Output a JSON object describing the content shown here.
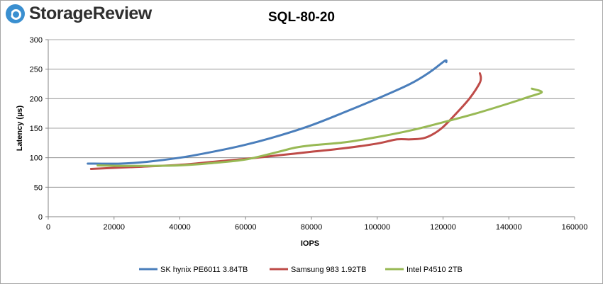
{
  "branding": {
    "logo_text": "StorageReview"
  },
  "chart_data": {
    "type": "line",
    "title": "SQL-80-20",
    "xlabel": "IOPS",
    "ylabel": "Latency (µs)",
    "xlim": [
      0,
      160000
    ],
    "ylim": [
      0,
      300
    ],
    "xticks": [
      0,
      20000,
      40000,
      60000,
      80000,
      100000,
      120000,
      140000,
      160000
    ],
    "yticks": [
      0,
      50,
      100,
      150,
      200,
      250,
      300
    ],
    "grid": "horizontal",
    "legend_position": "bottom",
    "series": [
      {
        "name": "SK hynix PE6011 3.84TB",
        "color": "#4a7ebb",
        "points": [
          [
            12000,
            90
          ],
          [
            22000,
            90
          ],
          [
            30000,
            93
          ],
          [
            40000,
            100
          ],
          [
            50000,
            110
          ],
          [
            60000,
            122
          ],
          [
            70000,
            137
          ],
          [
            80000,
            155
          ],
          [
            90000,
            177
          ],
          [
            100000,
            200
          ],
          [
            110000,
            225
          ],
          [
            116000,
            245
          ],
          [
            120500,
            264
          ],
          [
            121000,
            262
          ]
        ]
      },
      {
        "name": "Samsung 983 1.92TB",
        "color": "#be4b48",
        "points": [
          [
            13000,
            81
          ],
          [
            25000,
            84
          ],
          [
            40000,
            88
          ],
          [
            50000,
            93
          ],
          [
            60000,
            98
          ],
          [
            70000,
            104
          ],
          [
            80000,
            110
          ],
          [
            90000,
            116
          ],
          [
            100000,
            124
          ],
          [
            106000,
            131
          ],
          [
            110000,
            131
          ],
          [
            114000,
            133
          ],
          [
            117000,
            140
          ],
          [
            120000,
            152
          ],
          [
            124000,
            175
          ],
          [
            128000,
            200
          ],
          [
            131000,
            225
          ],
          [
            131500,
            235
          ],
          [
            131200,
            243
          ]
        ]
      },
      {
        "name": "Intel P4510 2TB",
        "color": "#98b954",
        "points": [
          [
            15000,
            87
          ],
          [
            25000,
            86
          ],
          [
            40000,
            87
          ],
          [
            50000,
            91
          ],
          [
            60000,
            97
          ],
          [
            70000,
            110
          ],
          [
            75000,
            117
          ],
          [
            80000,
            121
          ],
          [
            90000,
            126
          ],
          [
            100000,
            135
          ],
          [
            110000,
            146
          ],
          [
            120000,
            160
          ],
          [
            130000,
            175
          ],
          [
            140000,
            192
          ],
          [
            146000,
            203
          ],
          [
            150000,
            211
          ],
          [
            147000,
            217
          ]
        ]
      }
    ]
  }
}
